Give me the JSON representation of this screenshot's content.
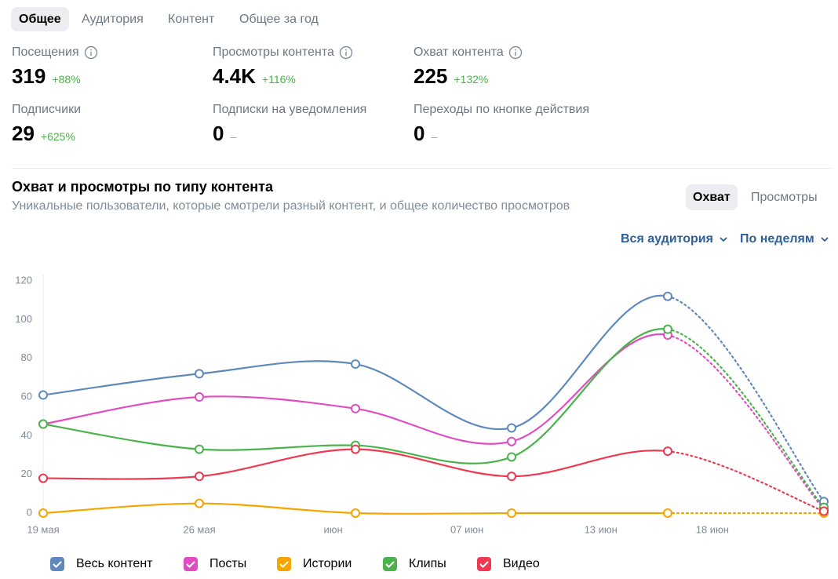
{
  "tabs": {
    "items": [
      "Общее",
      "Аудитория",
      "Контент",
      "Общее за год"
    ],
    "selected": 0
  },
  "stats": [
    {
      "label": "Посещения",
      "value": "319",
      "change": "+88%",
      "info": true
    },
    {
      "label": "Просмотры контента",
      "value": "4.4K",
      "change": "+116%",
      "info": true
    },
    {
      "label": "Охват контента",
      "value": "225",
      "change": "+132%",
      "info": true
    },
    {
      "label": "Подписчики",
      "value": "29",
      "change": "+625%",
      "info": false
    },
    {
      "label": "Подписки на уведомления",
      "value": "0",
      "change": "–",
      "info": false
    },
    {
      "label": "Переходы по кнопке действия",
      "value": "0",
      "change": "–",
      "info": false
    }
  ],
  "section": {
    "title": "Охват и просмотры по типу контента",
    "subtitle": "Уникальные пользователи, которые смотрели разный контент, и общее количество просмотров",
    "toggle": {
      "items": [
        "Охват",
        "Просмотры"
      ],
      "selected": 0
    },
    "filters": [
      "Вся аудитория",
      "По неделям"
    ]
  },
  "chart_data": {
    "type": "line",
    "x": [
      0,
      7,
      14,
      21,
      28,
      35
    ],
    "xlim": [
      0,
      35
    ],
    "xticks": [
      {
        "value": 0,
        "label": "19 мая"
      },
      {
        "value": 7,
        "label": "26 мая"
      },
      {
        "value": 13,
        "label": "июн"
      },
      {
        "value": 19,
        "label": "07 июн"
      },
      {
        "value": 25,
        "label": "13 июн"
      },
      {
        "value": 30,
        "label": "18 июн"
      }
    ],
    "ylim": [
      0,
      120
    ],
    "yticks": [
      0,
      20,
      40,
      60,
      80,
      100,
      120
    ],
    "last_segment_dotted": true,
    "series": [
      {
        "name": "Весь контент",
        "color": "#5f89bb",
        "values": [
          61,
          72,
          77,
          44,
          112,
          6
        ]
      },
      {
        "name": "Посты",
        "color": "#e04dc0",
        "values": [
          46,
          60,
          54,
          37,
          92,
          2
        ]
      },
      {
        "name": "Истории",
        "color": "#f5a400",
        "values": [
          0,
          5,
          0,
          0,
          0,
          0
        ]
      },
      {
        "name": "Клипы",
        "color": "#4bb34b",
        "values": [
          46,
          33,
          35,
          29,
          95,
          3
        ]
      },
      {
        "name": "Видео",
        "color": "#f0384f",
        "values": [
          18,
          19,
          33,
          19,
          32,
          1
        ]
      }
    ]
  }
}
